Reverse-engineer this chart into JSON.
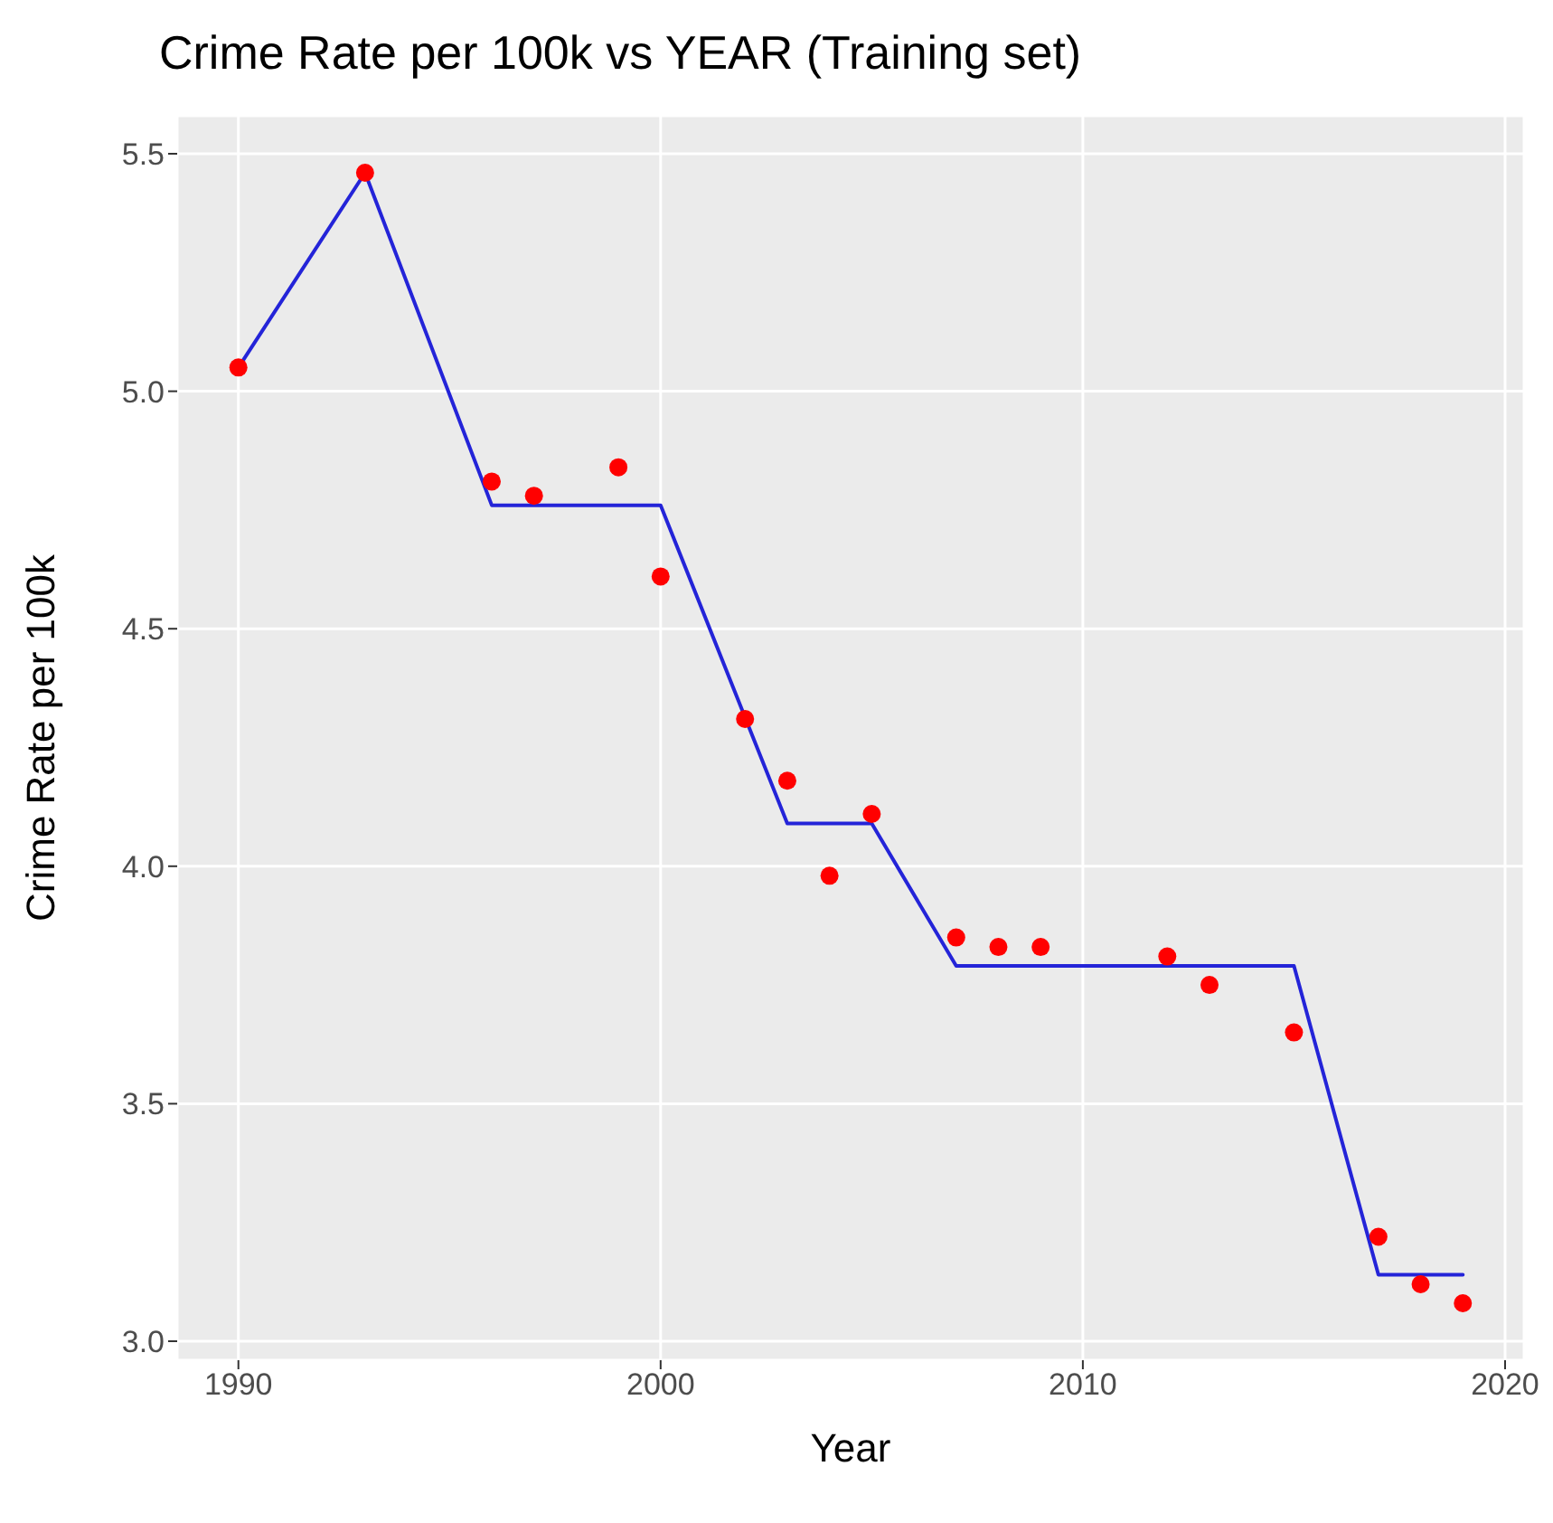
{
  "chart_data": {
    "type": "scatter",
    "title": "Crime Rate per 100k vs YEAR (Training set)",
    "xlabel": "Year",
    "ylabel": "Crime Rate per 100k",
    "series": [
      {
        "color": "#ff0000",
        "marker": "circle",
        "x": [
          1990,
          1993,
          1996,
          1997,
          1999,
          2000,
          2002,
          2003,
          2004,
          2005,
          2007,
          2008,
          2009,
          2012,
          2013,
          2015,
          2017,
          2018,
          2019
        ],
        "values": [
          5.05,
          5.46,
          4.81,
          4.78,
          4.84,
          4.61,
          4.31,
          4.18,
          3.98,
          4.11,
          3.85,
          3.83,
          3.83,
          3.81,
          3.75,
          3.65,
          3.22,
          3.12,
          3.08
        ]
      },
      {
        "type": "line",
        "marker": "none",
        "color": "#2424d8",
        "x": [
          1990,
          1993,
          1996,
          2000,
          2003,
          2005,
          2007,
          2015,
          2017,
          2019
        ],
        "values": [
          5.05,
          5.46,
          4.76,
          4.76,
          4.09,
          4.09,
          3.79,
          3.79,
          3.14,
          3.14
        ]
      }
    ],
    "xlim": [
      1988.55,
      2020.45
    ],
    "xticks": [
      1990,
      2000,
      2010,
      2020
    ],
    "ylim": [
      2.96,
      5.58
    ],
    "yticks": [
      {
        "value": 3,
        "label": "3.0"
      },
      3.5,
      {
        "value": 4,
        "label": "4.0"
      },
      4.5,
      {
        "value": 5,
        "label": "5.0"
      },
      5.5
    ],
    "grid": true,
    "line_style": "solid",
    "legend": false
  }
}
